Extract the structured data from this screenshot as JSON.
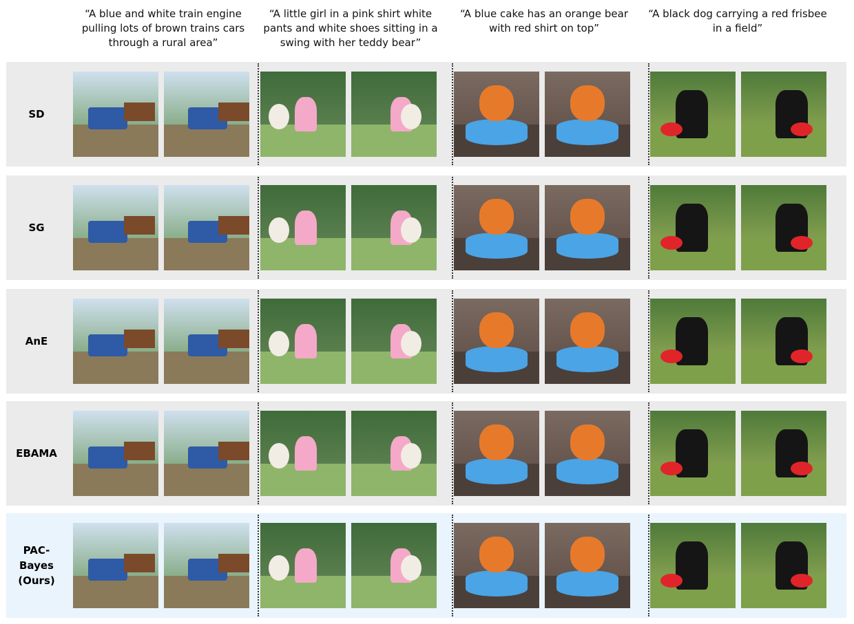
{
  "prompts": [
    "“A blue and white train engine pulling lots of brown trains cars through a rural area”",
    "“A little girl in a pink shirt white pants and white shoes sitting in a swing with her teddy bear”",
    "“A blue cake has an orange bear with red shirt on top”",
    "“A black dog carrying a red frisbee in a field”"
  ],
  "methods": [
    {
      "label": "SD"
    },
    {
      "label": "SG"
    },
    {
      "label": "AnE"
    },
    {
      "label": "EBAMA"
    },
    {
      "label": "PAC-\nBayes\n(Ours)"
    }
  ],
  "palette": {
    "row_bg": "#ebebeb",
    "ours_bg": "#eaf4fc"
  }
}
